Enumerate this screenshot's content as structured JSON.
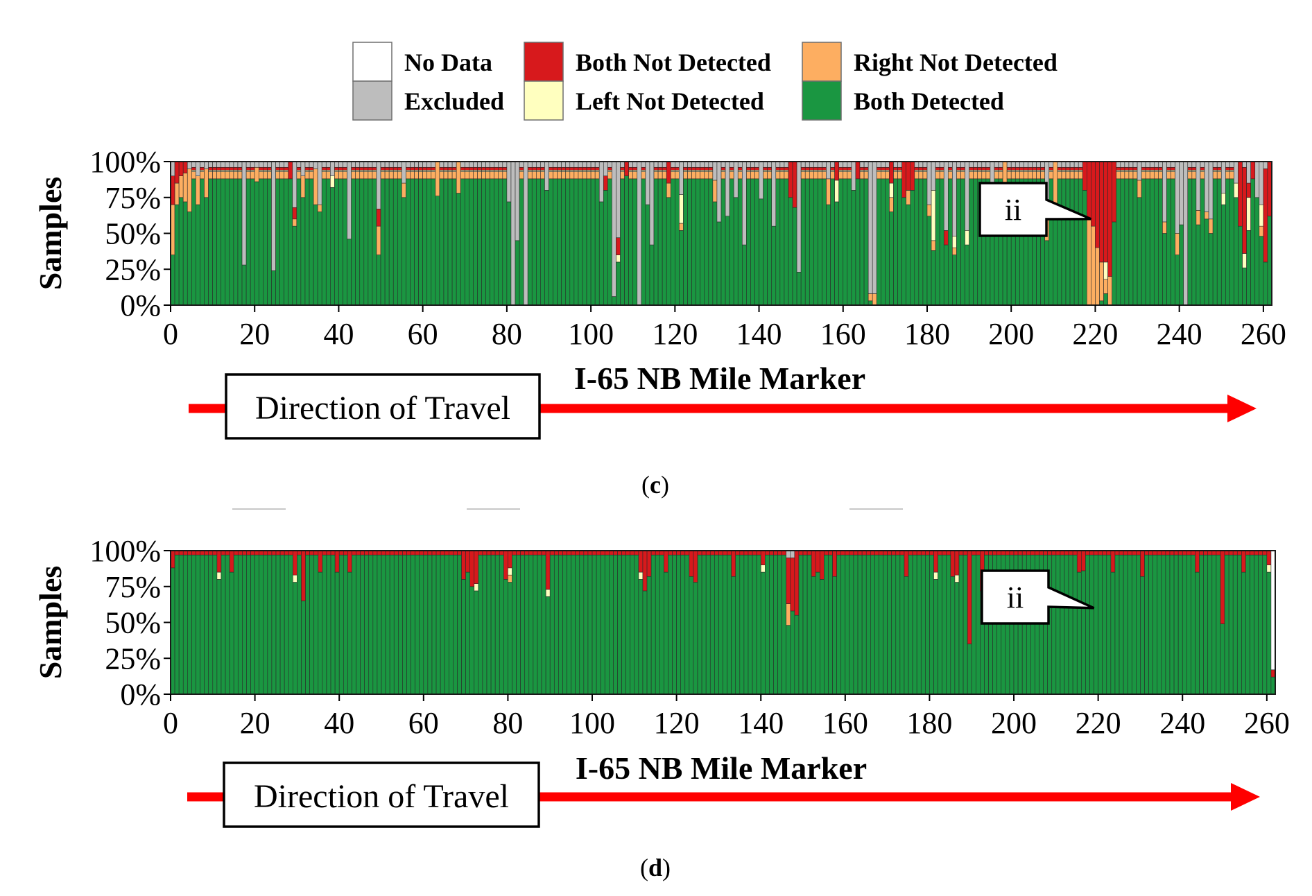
{
  "legend": {
    "items": [
      {
        "label": "No Data",
        "color": "#ffffff"
      },
      {
        "label": "Excluded",
        "color": "#bdbdbd"
      },
      {
        "label": "Both Not Detected",
        "color": "#d7191c"
      },
      {
        "label": "Left Not Detected",
        "color": "#ffffbf"
      },
      {
        "label": "Right Not Detected",
        "color": "#fdae61"
      },
      {
        "label": "Both Detected",
        "color": "#1a9641"
      }
    ]
  },
  "chart_data": [
    {
      "type": "bar",
      "stacked": true,
      "panel_label": "c",
      "xlabel": "I-65 NB Mile Marker",
      "ylabel": "Samples",
      "x_ticks": [
        0,
        20,
        40,
        60,
        80,
        100,
        120,
        140,
        160,
        180,
        200,
        220,
        240,
        260
      ],
      "y_ticks": [
        "0%",
        "25%",
        "50%",
        "75%",
        "100%"
      ],
      "xlim": [
        0,
        262
      ],
      "ylim": [
        0,
        100
      ],
      "annotation": {
        "text": "ii",
        "x": 219,
        "y": 60
      },
      "direction_label": "Direction of Travel",
      "series_order": [
        "Both Detected",
        "Right Not Detected",
        "Left Not Detected",
        "Both Not Detected",
        "Excluded",
        "No Data"
      ],
      "base": {
        "Both Detected": 88,
        "Right Not Detected": 5,
        "Left Not Detected": 1,
        "Both Not Detected": 2,
        "Excluded": 4,
        "No Data": 0
      },
      "bars": [
        {
          "x": 0,
          "Both Detected": 35,
          "Right Not Detected": 35,
          "Both Not Detected": 20,
          "Excluded": 10
        },
        {
          "x": 1,
          "Both Detected": 70,
          "Right Not Detected": 15,
          "Both Not Detected": 15
        },
        {
          "x": 2,
          "Both Detected": 75,
          "Right Not Detected": 15,
          "Both Not Detected": 10
        },
        {
          "x": 3,
          "Both Detected": 72,
          "Right Not Detected": 20,
          "Both Not Detected": 8
        },
        {
          "x": 4,
          "Both Detected": 65,
          "Right Not Detected": 30,
          "Excluded": 5
        },
        {
          "x": 6,
          "Both Detected": 70,
          "Right Not Detected": 20,
          "Excluded": 10
        },
        {
          "x": 8,
          "Both Detected": 75,
          "Right Not Detected": 20,
          "Excluded": 5
        },
        {
          "x": 17,
          "Both Detected": 28,
          "Excluded": 72
        },
        {
          "x": 20,
          "Both Detected": 86,
          "Right Not Detected": 10,
          "Excluded": 4
        },
        {
          "x": 24,
          "Both Detected": 24,
          "Excluded": 76
        },
        {
          "x": 28,
          "Both Detected": 88,
          "Both Not Detected": 12
        },
        {
          "x": 29,
          "Both Detected": 55,
          "Both Not Detected": 8,
          "Right Not Detected": 5,
          "Excluded": 32
        },
        {
          "x": 31,
          "Both Detected": 75,
          "Right Not Detected": 15,
          "Excluded": 10
        },
        {
          "x": 34,
          "Both Detected": 70,
          "Right Not Detected": 25,
          "Excluded": 5
        },
        {
          "x": 35,
          "Both Detected": 65,
          "Right Not Detected": 5,
          "Excluded": 30
        },
        {
          "x": 38,
          "Both Detected": 82,
          "Left Not Detected": 8,
          "Excluded": 10
        },
        {
          "x": 42,
          "Both Detected": 46,
          "Excluded": 54
        },
        {
          "x": 49,
          "Both Detected": 35,
          "Right Not Detected": 20,
          "Both Not Detected": 12,
          "Excluded": 33
        },
        {
          "x": 55,
          "Both Detected": 75,
          "Right Not Detected": 10,
          "Excluded": 15
        },
        {
          "x": 63,
          "Both Detected": 76,
          "Right Not Detected": 24
        },
        {
          "x": 68,
          "Both Detected": 78,
          "Right Not Detected": 22
        },
        {
          "x": 80,
          "Both Detected": 72,
          "Excluded": 28
        },
        {
          "x": 81,
          "Both Detected": 0,
          "Excluded": 100
        },
        {
          "x": 82,
          "Both Detected": 45,
          "Excluded": 55
        },
        {
          "x": 84,
          "Both Detected": 0,
          "Excluded": 100
        },
        {
          "x": 89,
          "Both Detected": 80,
          "Excluded": 20
        },
        {
          "x": 102,
          "Both Detected": 72,
          "Excluded": 28
        },
        {
          "x": 103,
          "Both Detected": 80,
          "Both Not Detected": 10,
          "Excluded": 10
        },
        {
          "x": 105,
          "Both Detected": 6,
          "Excluded": 94
        },
        {
          "x": 106,
          "Both Detected": 30,
          "Left Not Detected": 5,
          "Both Not Detected": 12,
          "Excluded": 53
        },
        {
          "x": 108,
          "Both Detected": 90,
          "Both Not Detected": 10
        },
        {
          "x": 111,
          "Both Detected": 0,
          "Excluded": 100
        },
        {
          "x": 113,
          "Both Detected": 70,
          "Excluded": 30
        },
        {
          "x": 114,
          "Both Detected": 42,
          "Excluded": 58
        },
        {
          "x": 118,
          "Both Detected": 75,
          "Right Not Detected": 10,
          "Both Not Detected": 15
        },
        {
          "x": 121,
          "Both Detected": 52,
          "Left Not Detected": 20,
          "Right Not Detected": 5,
          "Excluded": 23
        },
        {
          "x": 129,
          "Both Detected": 72,
          "Right Not Detected": 15,
          "Excluded": 13
        },
        {
          "x": 130,
          "Both Detected": 58,
          "Excluded": 42
        },
        {
          "x": 132,
          "Both Detected": 62,
          "Excluded": 38
        },
        {
          "x": 134,
          "Both Detected": 75,
          "Excluded": 25
        },
        {
          "x": 136,
          "Both Detected": 42,
          "Excluded": 58
        },
        {
          "x": 140,
          "Both Detected": 74,
          "Excluded": 26
        },
        {
          "x": 143,
          "Both Detected": 55,
          "Excluded": 45
        },
        {
          "x": 147,
          "Both Detected": 75,
          "Both Not Detected": 25
        },
        {
          "x": 148,
          "Both Detected": 68,
          "Both Not Detected": 32
        },
        {
          "x": 149,
          "Both Detected": 23,
          "Excluded": 77
        },
        {
          "x": 156,
          "Both Detected": 70,
          "Right Not Detected": 18,
          "Excluded": 12
        },
        {
          "x": 158,
          "Both Detected": 72,
          "Left Not Detected": 15,
          "Both Not Detected": 13
        },
        {
          "x": 162,
          "Both Detected": 80,
          "Excluded": 20
        },
        {
          "x": 163,
          "Both Detected": 88,
          "Both Not Detected": 12
        },
        {
          "x": 166,
          "Both Detected": 3,
          "Right Not Detected": 5,
          "Excluded": 92
        },
        {
          "x": 167,
          "Both Detected": 0,
          "Right Not Detected": 8,
          "Excluded": 92
        },
        {
          "x": 171,
          "Both Detected": 65,
          "Left Not Detected": 10,
          "Right Not Detected": 10,
          "Both Not Detected": 15
        },
        {
          "x": 174,
          "Both Detected": 75,
          "Both Not Detected": 25
        },
        {
          "x": 175,
          "Both Detected": 70,
          "Right Not Detected": 10,
          "Both Not Detected": 20
        },
        {
          "x": 176,
          "Both Detected": 80,
          "Both Not Detected": 20
        },
        {
          "x": 180,
          "Both Detected": 62,
          "Right Not Detected": 8,
          "Excluded": 30
        },
        {
          "x": 181,
          "Both Detected": 38,
          "Left Not Detected": 35,
          "Right Not Detected": 7,
          "Excluded": 20
        },
        {
          "x": 184,
          "Both Detected": 42,
          "Both Not Detected": 10,
          "Excluded": 48
        },
        {
          "x": 186,
          "Both Detected": 35,
          "Left Not Detected": 8,
          "Right Not Detected": 5,
          "Excluded": 52
        },
        {
          "x": 189,
          "Both Detected": 42,
          "Left Not Detected": 10,
          "Excluded": 48
        },
        {
          "x": 195,
          "Both Detected": 65,
          "Right Not Detected": 15,
          "Excluded": 20
        },
        {
          "x": 198,
          "Both Detected": 72,
          "Right Not Detected": 28
        },
        {
          "x": 208,
          "Both Detected": 45,
          "Right Not Detected": 25,
          "Excluded": 30
        },
        {
          "x": 210,
          "Both Detected": 68,
          "Right Not Detected": 32
        },
        {
          "x": 217,
          "Both Detected": 80,
          "Both Not Detected": 20
        },
        {
          "x": 218,
          "Both Detected": 0,
          "Right Not Detected": 60,
          "Both Not Detected": 40
        },
        {
          "x": 219,
          "Both Detected": 0,
          "Right Not Detected": 55,
          "Both Not Detected": 45
        },
        {
          "x": 220,
          "Both Detected": 0,
          "Right Not Detected": 40,
          "Both Not Detected": 60
        },
        {
          "x": 221,
          "Both Detected": 3,
          "Right Not Detected": 27,
          "Both Not Detected": 70
        },
        {
          "x": 222,
          "Both Detected": 8,
          "Left Not Detected": 12,
          "Right Not Detected": 10,
          "Both Not Detected": 70
        },
        {
          "x": 223,
          "Both Detected": 0,
          "Right Not Detected": 20,
          "Both Not Detected": 80
        },
        {
          "x": 224,
          "Both Detected": 58,
          "Both Not Detected": 42
        },
        {
          "x": 230,
          "Both Detected": 75,
          "Right Not Detected": 12,
          "Excluded": 13
        },
        {
          "x": 236,
          "Both Detected": 50,
          "Right Not Detected": 8,
          "Excluded": 42
        },
        {
          "x": 239,
          "Both Detected": 35,
          "Right Not Detected": 15,
          "Excluded": 50
        },
        {
          "x": 240,
          "Both Detected": 56,
          "Excluded": 44
        },
        {
          "x": 241,
          "Both Detected": 0,
          "Excluded": 100
        },
        {
          "x": 244,
          "Both Detected": 56,
          "Right Not Detected": 10,
          "Excluded": 34
        },
        {
          "x": 246,
          "Both Detected": 60,
          "Right Not Detected": 5,
          "Excluded": 35
        },
        {
          "x": 247,
          "Both Detected": 50,
          "Right Not Detected": 10,
          "Excluded": 40
        },
        {
          "x": 250,
          "Both Detected": 70,
          "Left Not Detected": 8,
          "Excluded": 22
        },
        {
          "x": 253,
          "Both Detected": 75,
          "Left Not Detected": 10,
          "Excluded": 15
        },
        {
          "x": 254,
          "Both Detected": 55,
          "Both Not Detected": 45
        },
        {
          "x": 255,
          "Both Detected": 26,
          "Left Not Detected": 10,
          "Both Not Detected": 60,
          "Excluded": 4
        },
        {
          "x": 256,
          "Both Detected": 52,
          "Left Not Detected": 23,
          "Both Not Detected": 10,
          "Excluded": 15
        },
        {
          "x": 257,
          "Both Detected": 88,
          "Both Not Detected": 12
        },
        {
          "x": 258,
          "Both Detected": 75,
          "Excluded": 25
        },
        {
          "x": 259,
          "Both Detected": 48,
          "Left Not Detected": 15,
          "Right Not Detected": 7,
          "Excluded": 30
        },
        {
          "x": 260,
          "Both Detected": 30,
          "Both Not Detected": 65,
          "Excluded": 5
        },
        {
          "x": 261,
          "Both Detected": 62,
          "Both Not Detected": 38
        }
      ]
    },
    {
      "type": "bar",
      "stacked": true,
      "panel_label": "d",
      "xlabel": "I-65 NB Mile Marker",
      "ylabel": "Samples",
      "x_ticks": [
        0,
        20,
        40,
        60,
        80,
        100,
        120,
        140,
        160,
        180,
        200,
        220,
        240,
        260
      ],
      "y_ticks": [
        "0%",
        "25%",
        "50%",
        "75%",
        "100%"
      ],
      "xlim": [
        0,
        262
      ],
      "ylim": [
        0,
        100
      ],
      "annotation": {
        "text": "ii",
        "x": 219,
        "y": 60
      },
      "direction_label": "Direction of Travel",
      "series_order": [
        "Both Detected",
        "Right Not Detected",
        "Left Not Detected",
        "Both Not Detected",
        "Excluded",
        "No Data"
      ],
      "base": {
        "Both Detected": 97,
        "Right Not Detected": 0,
        "Left Not Detected": 0,
        "Both Not Detected": 3,
        "Excluded": 0,
        "No Data": 0
      },
      "bars": [
        {
          "x": 0,
          "Both Detected": 88,
          "Both Not Detected": 12
        },
        {
          "x": 11,
          "Both Detected": 80,
          "Left Not Detected": 5,
          "Both Not Detected": 15
        },
        {
          "x": 14,
          "Both Detected": 85,
          "Both Not Detected": 15
        },
        {
          "x": 29,
          "Both Detected": 78,
          "Left Not Detected": 5,
          "Both Not Detected": 17
        },
        {
          "x": 31,
          "Both Detected": 65,
          "Both Not Detected": 35
        },
        {
          "x": 35,
          "Both Detected": 85,
          "Both Not Detected": 15
        },
        {
          "x": 39,
          "Both Detected": 85,
          "Both Not Detected": 15
        },
        {
          "x": 42,
          "Both Detected": 85,
          "Both Not Detected": 15
        },
        {
          "x": 69,
          "Both Detected": 80,
          "Both Not Detected": 20
        },
        {
          "x": 70,
          "Both Detected": 85,
          "Both Not Detected": 15
        },
        {
          "x": 71,
          "Both Detected": 75,
          "Both Not Detected": 25
        },
        {
          "x": 72,
          "Both Detected": 72,
          "Left Not Detected": 5,
          "Both Not Detected": 23
        },
        {
          "x": 79,
          "Both Detected": 80,
          "Both Not Detected": 20
        },
        {
          "x": 80,
          "Both Detected": 78,
          "Right Not Detected": 5,
          "Left Not Detected": 5,
          "Both Not Detected": 12
        },
        {
          "x": 89,
          "Both Detected": 68,
          "Left Not Detected": 5,
          "Both Not Detected": 27
        },
        {
          "x": 111,
          "Both Detected": 80,
          "Left Not Detected": 5,
          "Both Not Detected": 15
        },
        {
          "x": 112,
          "Both Detected": 72,
          "Both Not Detected": 28
        },
        {
          "x": 113,
          "Both Detected": 82,
          "Both Not Detected": 18
        },
        {
          "x": 117,
          "Both Detected": 85,
          "Both Not Detected": 15
        },
        {
          "x": 123,
          "Both Detected": 82,
          "Both Not Detected": 18
        },
        {
          "x": 124,
          "Both Detected": 78,
          "Both Not Detected": 22
        },
        {
          "x": 133,
          "Both Detected": 82,
          "Both Not Detected": 18
        },
        {
          "x": 140,
          "Both Detected": 85,
          "Left Not Detected": 5,
          "Both Not Detected": 10
        },
        {
          "x": 146,
          "Both Detected": 48,
          "Right Not Detected": 15,
          "Excluded": 5,
          "Both Not Detected": 32
        },
        {
          "x": 147,
          "Both Detected": 58,
          "Excluded": 5,
          "Both Not Detected": 37
        },
        {
          "x": 148,
          "Both Detected": 55,
          "Both Not Detected": 45
        },
        {
          "x": 152,
          "Both Detected": 82,
          "Both Not Detected": 18
        },
        {
          "x": 153,
          "Both Detected": 85,
          "Both Not Detected": 15
        },
        {
          "x": 154,
          "Both Detected": 80,
          "Both Not Detected": 20
        },
        {
          "x": 157,
          "Both Detected": 82,
          "Both Not Detected": 18
        },
        {
          "x": 174,
          "Both Detected": 82,
          "Both Not Detected": 18
        },
        {
          "x": 181,
          "Both Detected": 80,
          "Left Not Detected": 5,
          "Both Not Detected": 15
        },
        {
          "x": 185,
          "Both Detected": 82,
          "Both Not Detected": 18
        },
        {
          "x": 186,
          "Both Detected": 78,
          "Left Not Detected": 5,
          "Both Not Detected": 17
        },
        {
          "x": 189,
          "Both Detected": 35,
          "Both Not Detected": 65
        },
        {
          "x": 192,
          "Both Detected": 72,
          "Both Not Detected": 28
        },
        {
          "x": 215,
          "Both Detected": 85,
          "Both Not Detected": 15
        },
        {
          "x": 216,
          "Both Detected": 86,
          "Both Not Detected": 14
        },
        {
          "x": 223,
          "Both Detected": 85,
          "Both Not Detected": 15
        },
        {
          "x": 230,
          "Both Detected": 82,
          "Both Not Detected": 18
        },
        {
          "x": 243,
          "Both Detected": 85,
          "Both Not Detected": 15
        },
        {
          "x": 249,
          "Both Detected": 49,
          "Both Not Detected": 51
        },
        {
          "x": 254,
          "Both Detected": 85,
          "Both Not Detected": 15
        },
        {
          "x": 260,
          "Both Detected": 85,
          "Left Not Detected": 5,
          "Both Not Detected": 10
        },
        {
          "x": 261,
          "Both Detected": 12,
          "Both Not Detected": 5,
          "No Data": 83
        }
      ]
    }
  ]
}
